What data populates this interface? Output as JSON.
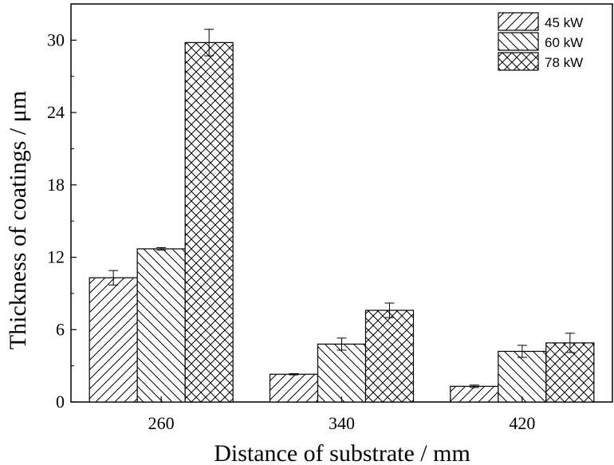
{
  "chart_data": {
    "type": "bar",
    "title": "",
    "xlabel": "Distance of substrate / mm",
    "ylabel": "Thickness of coatings / μm",
    "categories": [
      "260",
      "340",
      "420"
    ],
    "ylim": [
      0,
      33
    ],
    "yticks": [
      0,
      6,
      12,
      18,
      24,
      30
    ],
    "legend_position": "top-right",
    "grid": false,
    "series": [
      {
        "name": "45 kW",
        "values": [
          10.3,
          2.3,
          1.3
        ],
        "errors": [
          0.6,
          0.05,
          0.1
        ],
        "pattern": "forward-hatch"
      },
      {
        "name": "60 kW",
        "values": [
          12.7,
          4.8,
          4.2
        ],
        "errors": [
          0.1,
          0.5,
          0.5
        ],
        "pattern": "back-hatch"
      },
      {
        "name": "78 kW",
        "values": [
          29.8,
          7.6,
          4.9
        ],
        "errors": [
          1.1,
          0.6,
          0.8
        ],
        "pattern": "cross-hatch"
      }
    ]
  }
}
